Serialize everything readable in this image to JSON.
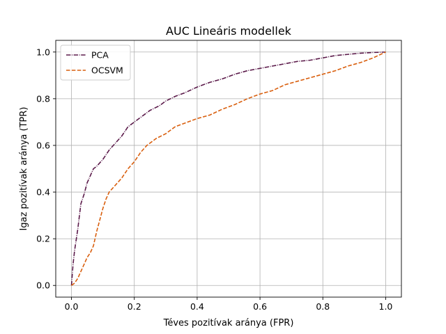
{
  "chart_data": {
    "type": "line",
    "title": "AUC Lineáris modellek",
    "xlabel": "Téves pozitívak aránya (FPR)",
    "ylabel": "Igaz pozitívak aránya (TPR)",
    "xlim": [
      -0.05,
      1.05
    ],
    "ylim": [
      -0.05,
      1.05
    ],
    "xticks": [
      0.0,
      0.2,
      0.4,
      0.6,
      0.8,
      1.0
    ],
    "yticks": [
      0.0,
      0.2,
      0.4,
      0.6,
      0.8,
      1.0
    ],
    "xtick_labels": [
      "0.0",
      "0.2",
      "0.4",
      "0.6",
      "0.8",
      "1.0"
    ],
    "ytick_labels": [
      "0.0",
      "0.2",
      "0.4",
      "0.6",
      "0.8",
      "1.0"
    ],
    "grid": true,
    "legend_position": "top-left",
    "series": [
      {
        "name": "PCA",
        "color": "#5b1a4a",
        "style": "dashdot",
        "x": [
          0.0,
          0.005,
          0.01,
          0.02,
          0.03,
          0.04,
          0.05,
          0.06,
          0.07,
          0.08,
          0.1,
          0.12,
          0.14,
          0.16,
          0.18,
          0.2,
          0.22,
          0.25,
          0.28,
          0.3,
          0.33,
          0.36,
          0.4,
          0.44,
          0.48,
          0.52,
          0.56,
          0.6,
          0.64,
          0.68,
          0.72,
          0.76,
          0.8,
          0.84,
          0.88,
          0.92,
          0.96,
          1.0
        ],
        "y": [
          0.0,
          0.09,
          0.15,
          0.24,
          0.35,
          0.39,
          0.44,
          0.47,
          0.5,
          0.51,
          0.54,
          0.58,
          0.61,
          0.64,
          0.68,
          0.7,
          0.72,
          0.75,
          0.77,
          0.79,
          0.81,
          0.825,
          0.85,
          0.87,
          0.885,
          0.905,
          0.92,
          0.93,
          0.94,
          0.95,
          0.96,
          0.965,
          0.975,
          0.985,
          0.99,
          0.995,
          0.998,
          1.0
        ]
      },
      {
        "name": "OCSVM",
        "color": "#d95f0e",
        "style": "dashed",
        "x": [
          0.0,
          0.01,
          0.02,
          0.03,
          0.04,
          0.05,
          0.06,
          0.07,
          0.08,
          0.09,
          0.1,
          0.11,
          0.12,
          0.14,
          0.16,
          0.18,
          0.2,
          0.22,
          0.24,
          0.27,
          0.3,
          0.33,
          0.36,
          0.4,
          0.44,
          0.48,
          0.52,
          0.56,
          0.6,
          0.64,
          0.68,
          0.72,
          0.76,
          0.8,
          0.84,
          0.88,
          0.92,
          0.96,
          1.0
        ],
        "y": [
          0.0,
          0.01,
          0.03,
          0.06,
          0.09,
          0.12,
          0.14,
          0.17,
          0.23,
          0.28,
          0.33,
          0.37,
          0.4,
          0.43,
          0.46,
          0.5,
          0.53,
          0.57,
          0.6,
          0.63,
          0.65,
          0.68,
          0.695,
          0.715,
          0.73,
          0.755,
          0.775,
          0.8,
          0.82,
          0.835,
          0.86,
          0.875,
          0.89,
          0.905,
          0.92,
          0.94,
          0.955,
          0.975,
          1.0
        ]
      }
    ]
  }
}
